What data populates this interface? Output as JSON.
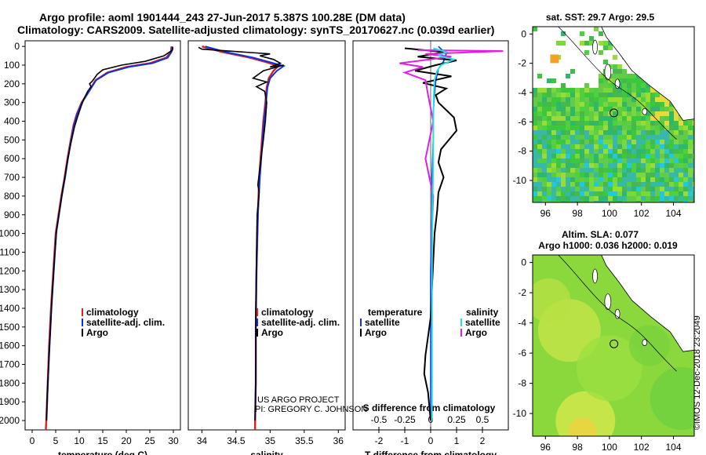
{
  "header": {
    "line1": "Argo profile: aoml 1901444_243 27-Jun-2017 5.387S 100.28E (DM data)",
    "line2": "Climatology: CARS2009. Satellite-adjusted climatology: synTS_20170627.nc (0.039d earlier)"
  },
  "colors": {
    "climatology": "#e02020",
    "satellite": "#1030e0",
    "argo": "#000000",
    "sal_satellite": "#20e0e8",
    "sal_argo": "#e020e0"
  },
  "chart_data": [
    {
      "type": "line",
      "id": "temperature",
      "xlabel": "temperature (deg C)",
      "ylabel": "",
      "xlim": [
        -1.5,
        31.5
      ],
      "ylim": [
        2050,
        -30
      ],
      "xticks": [
        0,
        5,
        10,
        15,
        20,
        25,
        30
      ],
      "yticks": [
        0,
        100,
        200,
        300,
        400,
        500,
        600,
        700,
        800,
        900,
        1000,
        1100,
        1200,
        1300,
        1400,
        1500,
        1600,
        1700,
        1800,
        1900,
        2000
      ],
      "legend": {
        "placement": "lower-center",
        "entries": [
          "climatology",
          "satellite-adj. clim.",
          "Argo"
        ]
      },
      "series": [
        {
          "name": "climatology",
          "points": [
            [
              29.6,
              0
            ],
            [
              29.5,
              30
            ],
            [
              28.5,
              60
            ],
            [
              25,
              90
            ],
            [
              20,
              110
            ],
            [
              16,
              140
            ],
            [
              13.5,
              180
            ],
            [
              12.5,
              220
            ],
            [
              11.5,
              260
            ],
            [
              10.5,
              300
            ],
            [
              9.5,
              360
            ],
            [
              8.8,
              420
            ],
            [
              8.2,
              500
            ],
            [
              7.5,
              600
            ],
            [
              6.9,
              700
            ],
            [
              6.2,
              800
            ],
            [
              5.6,
              900
            ],
            [
              5.0,
              1000
            ],
            [
              4.5,
              1200
            ],
            [
              4.0,
              1400
            ],
            [
              3.6,
              1600
            ],
            [
              3.3,
              1800
            ],
            [
              3.0,
              2000
            ],
            [
              2.9,
              2050
            ]
          ]
        },
        {
          "name": "satellite-adj. clim.",
          "points": [
            [
              29.8,
              0
            ],
            [
              29.6,
              30
            ],
            [
              28.8,
              60
            ],
            [
              25.5,
              90
            ],
            [
              20.5,
              110
            ],
            [
              16.2,
              140
            ],
            [
              13.6,
              180
            ],
            [
              12.6,
              220
            ],
            [
              11.6,
              260
            ],
            [
              10.6,
              300
            ],
            [
              9.6,
              360
            ],
            [
              8.9,
              420
            ],
            [
              8.3,
              500
            ],
            [
              7.6,
              600
            ],
            [
              7.0,
              700
            ],
            [
              6.3,
              800
            ],
            [
              5.7,
              900
            ],
            [
              5.1,
              1000
            ],
            [
              4.6,
              1200
            ],
            [
              4.1,
              1400
            ],
            [
              3.7,
              1600
            ],
            [
              3.35,
              1800
            ],
            [
              3.05,
              2000
            ]
          ]
        },
        {
          "name": "Argo",
          "points": [
            [
              29.9,
              5
            ],
            [
              29.8,
              20
            ],
            [
              28.0,
              50
            ],
            [
              24,
              80
            ],
            [
              19,
              100
            ],
            [
              15,
              125
            ],
            [
              13.8,
              150
            ],
            [
              12.8,
              185
            ],
            [
              12.2,
              200
            ],
            [
              12.5,
              215
            ],
            [
              11.8,
              240
            ],
            [
              11.0,
              280
            ],
            [
              10.4,
              320
            ],
            [
              9.6,
              380
            ],
            [
              9.0,
              430
            ],
            [
              8.2,
              520
            ],
            [
              7.6,
              600
            ],
            [
              7.0,
              690
            ],
            [
              6.4,
              780
            ],
            [
              5.8,
              880
            ],
            [
              5.2,
              980
            ],
            [
              4.7,
              1150
            ],
            [
              4.2,
              1350
            ],
            [
              3.8,
              1550
            ],
            [
              3.4,
              1750
            ],
            [
              3.15,
              1900
            ],
            [
              3.05,
              2000
            ]
          ]
        }
      ]
    },
    {
      "type": "line",
      "id": "salinity",
      "xlabel": "salinity",
      "ylabel": "",
      "xlim": [
        33.8,
        36.1
      ],
      "ylim": [
        2050,
        -30
      ],
      "xticks": [
        34,
        34.5,
        35,
        35.5,
        36
      ],
      "legend": {
        "placement": "lower-center",
        "entries": [
          "climatology",
          "satellite-adj. clim.",
          "Argo"
        ]
      },
      "series": [
        {
          "name": "climatology",
          "points": [
            [
              34.0,
              0
            ],
            [
              34.3,
              30
            ],
            [
              34.7,
              60
            ],
            [
              34.95,
              85
            ],
            [
              35.12,
              105
            ],
            [
              35.05,
              130
            ],
            [
              34.98,
              170
            ],
            [
              34.95,
              220
            ],
            [
              34.93,
              300
            ],
            [
              34.9,
              400
            ],
            [
              34.87,
              550
            ],
            [
              34.84,
              700
            ],
            [
              34.82,
              900
            ],
            [
              34.8,
              1200
            ],
            [
              34.79,
              1500
            ],
            [
              34.79,
              1800
            ],
            [
              34.78,
              2000
            ],
            [
              34.78,
              2050
            ]
          ]
        },
        {
          "name": "satellite-adj. clim.",
          "points": [
            [
              34.05,
              0
            ],
            [
              34.35,
              30
            ],
            [
              34.75,
              60
            ],
            [
              35.0,
              85
            ],
            [
              35.2,
              105
            ],
            [
              35.1,
              130
            ],
            [
              35.0,
              170
            ],
            [
              34.96,
              220
            ],
            [
              34.94,
              300
            ],
            [
              34.91,
              400
            ],
            [
              34.88,
              550
            ],
            [
              34.85,
              700
            ],
            [
              34.82,
              900
            ],
            [
              34.8,
              1200
            ],
            [
              34.79,
              1500
            ],
            [
              34.79,
              1800
            ],
            [
              34.78,
              2000
            ]
          ]
        },
        {
          "name": "Argo",
          "points": [
            [
              33.95,
              5
            ],
            [
              34.0,
              15
            ],
            [
              34.4,
              25
            ],
            [
              34.8,
              35
            ],
            [
              35.0,
              40
            ],
            [
              34.85,
              50
            ],
            [
              35.05,
              70
            ],
            [
              35.15,
              90
            ],
            [
              35.0,
              110
            ],
            [
              35.2,
              100
            ],
            [
              34.9,
              130
            ],
            [
              34.75,
              170
            ],
            [
              34.95,
              190
            ],
            [
              34.8,
              215
            ],
            [
              34.92,
              240
            ],
            [
              34.95,
              300
            ],
            [
              34.93,
              400
            ],
            [
              34.9,
              500
            ],
            [
              34.86,
              620
            ],
            [
              34.82,
              740
            ],
            [
              34.84,
              780
            ],
            [
              34.81,
              900
            ],
            [
              34.8,
              1100
            ],
            [
              34.79,
              1400
            ],
            [
              34.79,
              1700
            ],
            [
              34.78,
              2000
            ]
          ]
        }
      ]
    },
    {
      "type": "line",
      "id": "difference",
      "xlabel": "T difference from climatology",
      "xlabel2": "S difference from climatology",
      "xlim": [
        -3,
        3
      ],
      "ylim": [
        2050,
        -30
      ],
      "xticks": [
        -2,
        -1,
        0,
        1,
        2
      ],
      "xticks2": [
        -0.5,
        -0.25,
        0,
        0.25,
        0.5
      ],
      "legend": {
        "placement": "lower-center",
        "entries_left": [
          "temperature",
          "satellite",
          "Argo"
        ],
        "entries_right": [
          "salinity",
          "satellite",
          "Argo"
        ]
      },
      "series": [
        {
          "name": "T satellite",
          "points": [
            [
              0.3,
              0
            ],
            [
              0.6,
              40
            ],
            [
              0.5,
              80
            ],
            [
              0.3,
              120
            ],
            [
              0.2,
              180
            ],
            [
              0.15,
              250
            ],
            [
              0.1,
              350
            ],
            [
              0.1,
              500
            ],
            [
              0.05,
              700
            ],
            [
              0.05,
              900
            ],
            [
              0.0,
              1200
            ],
            [
              0.0,
              1600
            ],
            [
              0.0,
              2000
            ]
          ]
        },
        {
          "name": "T Argo",
          "points": [
            [
              -1,
              10
            ],
            [
              0.5,
              30
            ],
            [
              -0.5,
              55
            ],
            [
              1.0,
              75
            ],
            [
              0.2,
              100
            ],
            [
              -0.6,
              130
            ],
            [
              0.8,
              160
            ],
            [
              -0.3,
              195
            ],
            [
              0.6,
              225
            ],
            [
              0.2,
              260
            ],
            [
              0.3,
              300
            ],
            [
              0.9,
              380
            ],
            [
              1.0,
              450
            ],
            [
              0.4,
              550
            ],
            [
              0.3,
              620
            ],
            [
              0.5,
              700
            ],
            [
              0.3,
              780
            ],
            [
              0.25,
              880
            ],
            [
              0.15,
              1000
            ],
            [
              0.1,
              1150
            ],
            [
              0.05,
              1300
            ],
            [
              0.0,
              1450
            ],
            [
              -0.1,
              1550
            ],
            [
              -0.2,
              1650
            ],
            [
              -0.25,
              1750
            ],
            [
              -0.1,
              1850
            ],
            [
              0.0,
              2000
            ]
          ]
        },
        {
          "name": "S satellite",
          "points": [
            [
              0.1,
              10
            ],
            [
              0.6,
              30
            ],
            [
              0.3,
              50
            ],
            [
              0.9,
              70
            ],
            [
              0.4,
              100
            ],
            [
              0.25,
              130
            ],
            [
              0.15,
              180
            ],
            [
              0.12,
              260
            ],
            [
              0.1,
              400
            ],
            [
              0.1,
              600
            ],
            [
              0.08,
              800
            ],
            [
              0.06,
              1000
            ],
            [
              0.05,
              1200
            ],
            [
              0.05,
              1500
            ],
            [
              0.05,
              1800
            ],
            [
              0.05,
              2000
            ]
          ]
        },
        {
          "name": "S Argo",
          "points": [
            [
              -0.5,
              20
            ],
            [
              2.8,
              25
            ],
            [
              -0.2,
              40
            ],
            [
              0.8,
              55
            ],
            [
              -1.2,
              90
            ],
            [
              -0.3,
              110
            ],
            [
              -1.0,
              140
            ],
            [
              -0.2,
              180
            ],
            [
              -0.1,
              260
            ],
            [
              0.1,
              400
            ],
            [
              -0.2,
              600
            ],
            [
              0.1,
              800
            ],
            [
              0.05,
              1000
            ],
            [
              0.05,
              1200
            ],
            [
              0.05,
              1500
            ],
            [
              0.05,
              1800
            ],
            [
              0.05,
              2000
            ]
          ]
        }
      ]
    },
    {
      "type": "heatmap",
      "id": "sst_map",
      "title": "sat. SST: 29.7 Argo: 29.5",
      "xlim": [
        95.2,
        105.3
      ],
      "ylim": [
        -11.5,
        0.5
      ],
      "xticks": [
        96,
        98,
        100,
        102,
        104
      ],
      "yticks": [
        0,
        -2,
        -4,
        -6,
        -8,
        -10
      ],
      "argo_position": [
        100.28,
        -5.387
      ]
    },
    {
      "type": "heatmap",
      "id": "sla_map",
      "title": "Altim. SLA: 0.077",
      "subtitle": "Argo h1000: 0.036 h2000: 0.019",
      "xlim": [
        95.2,
        105.3
      ],
      "ylim": [
        -11.5,
        0.5
      ],
      "xticks": [
        96,
        98,
        100,
        102,
        104
      ],
      "yticks": [
        0,
        -2,
        -4,
        -6,
        -8,
        -10
      ],
      "argo_position": [
        100.28,
        -5.387
      ]
    }
  ],
  "credit": {
    "project": "US ARGO PROJECT",
    "pi": "PI: GREGORY C. JOHNSON",
    "imos": "©IMOS 12-Dec-2018 23:2049"
  }
}
